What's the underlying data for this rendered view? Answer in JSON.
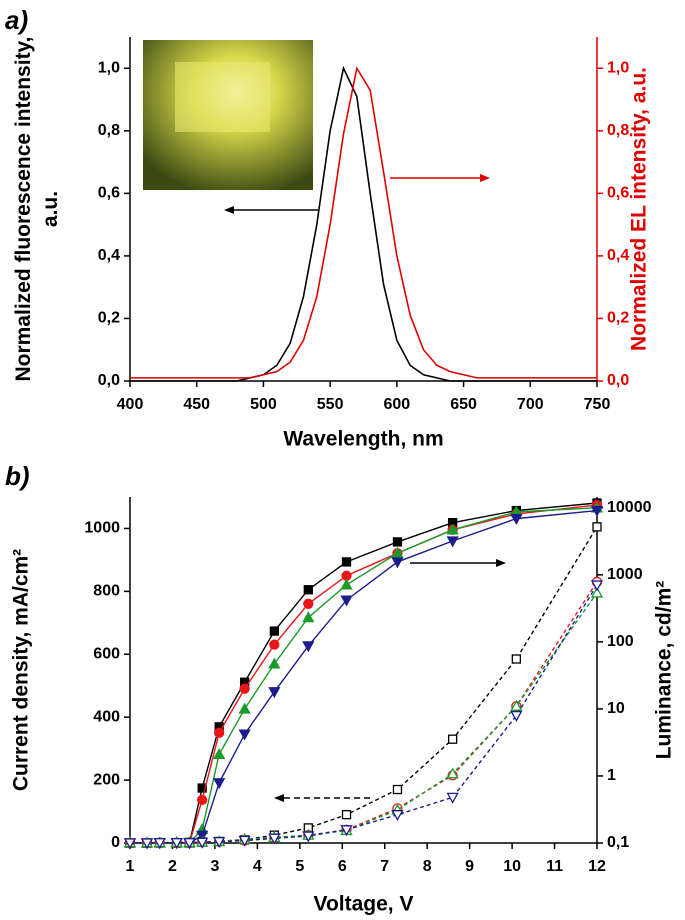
{
  "chart_data": [
    {
      "type": "line",
      "label": "a)",
      "xlabel": "Wavelength, nm",
      "ylabel": "Normalized fluorescence intensity, a.u.",
      "y2label": "Normalized EL intensity, a.u.",
      "y2color": "#e00000",
      "x": [
        400,
        410,
        420,
        430,
        440,
        450,
        460,
        470,
        480,
        490,
        500,
        510,
        520,
        530,
        540,
        550,
        560,
        570,
        580,
        590,
        600,
        610,
        620,
        630,
        640,
        650,
        660,
        670,
        680,
        690,
        700,
        710,
        720,
        730,
        740,
        750
      ],
      "xlim": [
        400,
        750
      ],
      "xticks": [
        400,
        450,
        500,
        550,
        600,
        650,
        700,
        750
      ],
      "ylim": [
        0,
        1.1
      ],
      "yticks": [
        {
          "value": 0,
          "label": "0,0"
        },
        {
          "value": 0.2,
          "label": "0,2"
        },
        {
          "value": 0.4,
          "label": "0,4"
        },
        {
          "value": 0.6,
          "label": "0,6"
        },
        {
          "value": 0.8,
          "label": "0,8"
        },
        {
          "value": 1.0,
          "label": "1,0"
        }
      ],
      "y2lim": [
        0,
        1.1
      ],
      "y2ticks": [
        {
          "value": 0,
          "label": "0,0"
        },
        {
          "value": 0.2,
          "label": "0,2"
        },
        {
          "value": 0.4,
          "label": "0,4"
        },
        {
          "value": 0.6,
          "label": "0,6"
        },
        {
          "value": 0.8,
          "label": "0,8"
        },
        {
          "value": 1.0,
          "label": "1,0"
        }
      ],
      "series": [
        {
          "color": "#000000",
          "values": [
            0,
            0,
            0,
            0,
            0,
            0,
            0,
            0,
            0,
            0.01,
            0.02,
            0.05,
            0.12,
            0.27,
            0.5,
            0.8,
            1.0,
            0.91,
            0.6,
            0.31,
            0.13,
            0.05,
            0.02,
            0.01,
            0,
            0,
            0,
            0,
            0,
            0,
            0,
            0,
            0,
            0,
            0,
            0
          ]
        },
        {
          "color": "#e00000",
          "axis": "y2",
          "values": [
            0.01,
            0.01,
            0.01,
            0.01,
            0.01,
            0.01,
            0.01,
            0.01,
            0.01,
            0.01,
            0.02,
            0.03,
            0.06,
            0.13,
            0.27,
            0.5,
            0.79,
            1.0,
            0.93,
            0.67,
            0.4,
            0.21,
            0.1,
            0.05,
            0.03,
            0.02,
            0.01,
            0.01,
            0.01,
            0.01,
            0.01,
            0.01,
            0.01,
            0.01,
            0.01,
            0.01
          ]
        }
      ]
    },
    {
      "type": "line",
      "label": "b)",
      "xlabel": "Voltage, V",
      "ylabel": "Current density, mA/cm²",
      "y2label": "Luminance, cd/m²",
      "x": [
        1.0,
        1.4,
        1.7,
        2.1,
        2.4,
        2.7,
        3.1,
        3.7,
        4.4,
        5.2,
        6.1,
        7.3,
        8.6,
        10.1,
        12.0
      ],
      "xlim": [
        1,
        12
      ],
      "xticks": [
        1,
        2,
        3,
        4,
        5,
        6,
        7,
        8,
        9,
        10,
        11,
        12
      ],
      "ylim": [
        0,
        1100
      ],
      "yticks": [
        0,
        200,
        400,
        600,
        800,
        1000
      ],
      "y2log": true,
      "y2lim": [
        0.1,
        14500
      ],
      "y2ticks": [
        {
          "value": 0.1,
          "label": "0,1"
        },
        1,
        10,
        100,
        1000,
        10000
      ],
      "series": [
        {
          "color": "#000000",
          "axis": "y2",
          "marker": "square",
          "filled": true,
          "values": [
            0.1,
            0.1,
            0.1,
            0.1,
            0.1,
            0.66,
            5.4,
            25,
            145,
            600,
            1560,
            3100,
            6000,
            9100,
            11800
          ]
        },
        {
          "color": "#e8161b",
          "axis": "y2",
          "marker": "circle",
          "filled": true,
          "values": [
            0.1,
            0.1,
            0.1,
            0.1,
            0.1,
            0.44,
            4.4,
            20,
            91,
            370,
            970,
            2100,
            4700,
            8100,
            11000
          ]
        },
        {
          "color": "#1a9a2a",
          "axis": "y2",
          "marker": "triangle",
          "filled": true,
          "values": [
            0.1,
            0.1,
            0.1,
            0.1,
            0.1,
            0.16,
            2.1,
            10,
            47,
            230,
            710,
            2100,
            4700,
            8700,
            10000
          ]
        },
        {
          "color": "#1c1c8c",
          "axis": "y2",
          "marker": "triangle-down",
          "filled": true,
          "values": [
            0.1,
            0.1,
            0.1,
            0.1,
            0.1,
            0.13,
            0.79,
            4.2,
            18,
            87,
            420,
            1560,
            3200,
            6900,
            9100
          ]
        },
        {
          "color": "#000000",
          "marker": "square",
          "filled": false,
          "dashed": true,
          "values": [
            0,
            0,
            1,
            1,
            2,
            3,
            5,
            10,
            25,
            48,
            90,
            170,
            330,
            585,
            1005
          ]
        },
        {
          "color": "#e8161b",
          "marker": "circle",
          "filled": false,
          "dashed": true,
          "values": [
            0,
            0,
            1,
            1,
            1,
            2,
            4,
            8,
            15,
            25,
            42,
            110,
            215,
            435,
            830
          ]
        },
        {
          "color": "#1a9a2a",
          "marker": "triangle",
          "filled": false,
          "dashed": true,
          "values": [
            1,
            1,
            1,
            2,
            2,
            3,
            5,
            12,
            18,
            25,
            40,
            105,
            220,
            435,
            795
          ]
        },
        {
          "color": "#1c1c8c",
          "marker": "triangle-down",
          "filled": false,
          "dashed": true,
          "values": [
            0,
            0,
            1,
            1,
            1,
            2,
            4,
            8,
            15,
            22,
            42,
            90,
            145,
            405,
            820
          ]
        }
      ]
    }
  ]
}
